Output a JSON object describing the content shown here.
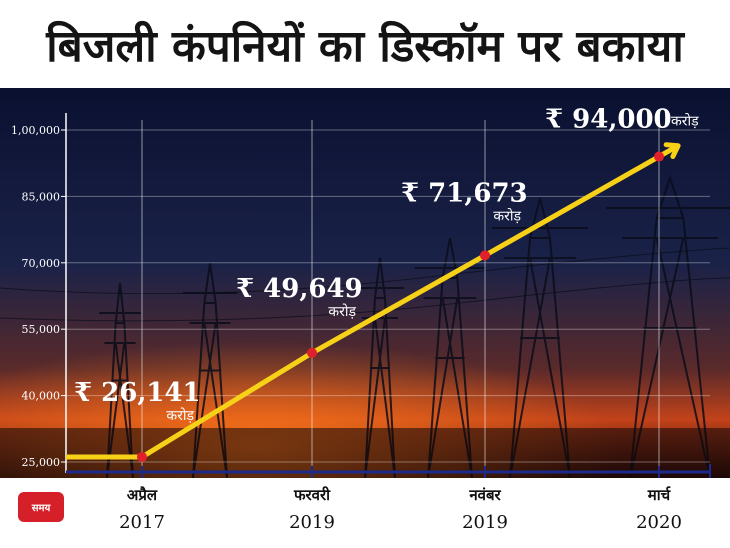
{
  "title": "बिजली कंपनियों का डिस्कॉम पर बकाया",
  "time_badge": "समय",
  "colors": {
    "line": "#f7d117",
    "point": "#e0202a",
    "badge": "#d5202a",
    "sky_top": "#0b1230",
    "sunset": "#c2421a"
  },
  "chart_data": {
    "type": "line",
    "title": "बिजली कंपनियों का डिस्कॉम पर बकाया",
    "xlabel": "समय",
    "ylabel": "",
    "ylim": [
      25000,
      100000
    ],
    "yticks": [
      "25,000",
      "40,000",
      "55,000",
      "70,000",
      "85,000",
      "1,00,000"
    ],
    "ytick_values": [
      25000,
      40000,
      55000,
      70000,
      85000,
      100000
    ],
    "x": [
      {
        "month": "अप्रैल",
        "year": "2017"
      },
      {
        "month": "फरवरी",
        "year": "2019"
      },
      {
        "month": "नवंबर",
        "year": "2019"
      },
      {
        "month": "मार्च",
        "year": "2020"
      }
    ],
    "values": [
      26141,
      49649,
      71673,
      94000
    ],
    "labels": [
      "₹ 26,141",
      "₹ 49,649",
      "₹ 71,673",
      "₹ 94,000"
    ],
    "label_unit": "करोड़",
    "grid": true
  }
}
